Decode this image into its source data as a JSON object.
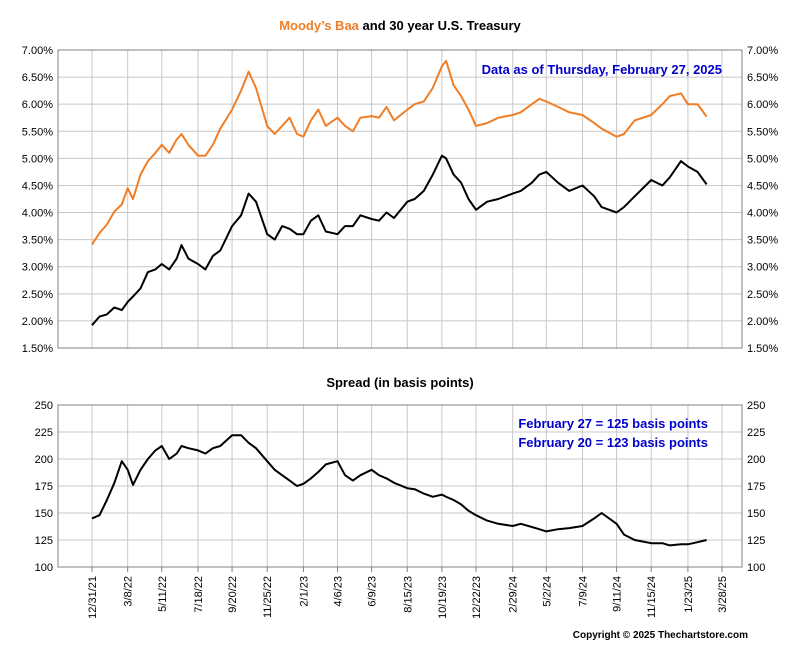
{
  "chart_data": [
    {
      "type": "line",
      "title_parts": [
        {
          "text": "Moody’s Baa",
          "color": "#f07e26"
        },
        {
          "text": " and 30 year U.S. Treasury",
          "color": "#000000"
        }
      ],
      "annotation": "Data as of Thursday, February 27, 2025",
      "annotation_color": "#0000cc",
      "ylim": [
        1.5,
        7.0
      ],
      "yticks": [
        "1.50%",
        "2.00%",
        "2.50%",
        "3.00%",
        "3.50%",
        "4.00%",
        "4.50%",
        "5.00%",
        "5.50%",
        "6.00%",
        "6.50%",
        "7.00%"
      ],
      "grid": true,
      "series": [
        {
          "name": "Moody’s Baa",
          "color": "#f07e26",
          "points": [
            [
              "12/31/21",
              3.41
            ],
            [
              "1/14/22",
              3.62
            ],
            [
              "1/28/22",
              3.78
            ],
            [
              "2/11/22",
              4.02
            ],
            [
              "2/25/22",
              4.15
            ],
            [
              "3/8/22",
              4.45
            ],
            [
              "3/18/22",
              4.25
            ],
            [
              "4/1/22",
              4.7
            ],
            [
              "4/15/22",
              4.95
            ],
            [
              "4/29/22",
              5.1
            ],
            [
              "5/11/22",
              5.25
            ],
            [
              "5/25/22",
              5.1
            ],
            [
              "6/8/22",
              5.35
            ],
            [
              "6/17/22",
              5.45
            ],
            [
              "6/30/22",
              5.25
            ],
            [
              "7/18/22",
              5.05
            ],
            [
              "8/1/22",
              5.05
            ],
            [
              "8/15/22",
              5.25
            ],
            [
              "8/29/22",
              5.55
            ],
            [
              "9/20/22",
              5.9
            ],
            [
              "10/7/22",
              6.25
            ],
            [
              "10/21/22",
              6.6
            ],
            [
              "11/4/22",
              6.3
            ],
            [
              "11/25/22",
              5.6
            ],
            [
              "12/9/22",
              5.45
            ],
            [
              "12/23/22",
              5.6
            ],
            [
              "1/6/23",
              5.75
            ],
            [
              "1/20/23",
              5.45
            ],
            [
              "2/1/23",
              5.4
            ],
            [
              "2/15/23",
              5.7
            ],
            [
              "3/1/23",
              5.9
            ],
            [
              "3/15/23",
              5.6
            ],
            [
              "4/6/23",
              5.75
            ],
            [
              "4/20/23",
              5.6
            ],
            [
              "5/5/23",
              5.5
            ],
            [
              "5/19/23",
              5.75
            ],
            [
              "6/9/23",
              5.78
            ],
            [
              "6/23/23",
              5.75
            ],
            [
              "7/7/23",
              5.95
            ],
            [
              "7/21/23",
              5.7
            ],
            [
              "8/15/23",
              5.9
            ],
            [
              "8/29/23",
              6.0
            ],
            [
              "9/15/23",
              6.05
            ],
            [
              "10/2/23",
              6.3
            ],
            [
              "10/19/23",
              6.7
            ],
            [
              "10/27/23",
              6.8
            ],
            [
              "11/10/23",
              6.35
            ],
            [
              "11/24/23",
              6.15
            ],
            [
              "12/8/23",
              5.9
            ],
            [
              "12/22/23",
              5.6
            ],
            [
              "1/12/24",
              5.65
            ],
            [
              "2/2/24",
              5.75
            ],
            [
              "2/29/24",
              5.8
            ],
            [
              "3/15/24",
              5.85
            ],
            [
              "4/5/24",
              6.0
            ],
            [
              "4/19/24",
              6.1
            ],
            [
              "5/2/24",
              6.05
            ],
            [
              "5/24/24",
              5.95
            ],
            [
              "6/14/24",
              5.85
            ],
            [
              "7/9/24",
              5.8
            ],
            [
              "7/31/24",
              5.65
            ],
            [
              "8/14/24",
              5.55
            ],
            [
              "9/11/24",
              5.4
            ],
            [
              "9/25/24",
              5.45
            ],
            [
              "10/15/24",
              5.7
            ],
            [
              "11/15/24",
              5.8
            ],
            [
              "12/6/24",
              6.0
            ],
            [
              "12/20/24",
              6.15
            ],
            [
              "1/10/25",
              6.2
            ],
            [
              "1/23/25",
              6.0
            ],
            [
              "2/10/25",
              6.0
            ],
            [
              "2/27/25",
              5.77
            ]
          ]
        },
        {
          "name": "30 year U.S. Treasury",
          "color": "#000000",
          "points": [
            [
              "12/31/21",
              1.92
            ],
            [
              "1/14/22",
              2.08
            ],
            [
              "1/28/22",
              2.12
            ],
            [
              "2/11/22",
              2.25
            ],
            [
              "2/25/22",
              2.2
            ],
            [
              "3/8/22",
              2.35
            ],
            [
              "3/18/22",
              2.45
            ],
            [
              "4/1/22",
              2.6
            ],
            [
              "4/15/22",
              2.9
            ],
            [
              "4/29/22",
              2.95
            ],
            [
              "5/11/22",
              3.05
            ],
            [
              "5/25/22",
              2.95
            ],
            [
              "6/8/22",
              3.15
            ],
            [
              "6/17/22",
              3.4
            ],
            [
              "6/30/22",
              3.15
            ],
            [
              "7/18/22",
              3.05
            ],
            [
              "8/1/22",
              2.95
            ],
            [
              "8/15/22",
              3.2
            ],
            [
              "8/29/22",
              3.3
            ],
            [
              "9/20/22",
              3.75
            ],
            [
              "10/7/22",
              3.95
            ],
            [
              "10/21/22",
              4.35
            ],
            [
              "11/4/22",
              4.2
            ],
            [
              "11/25/22",
              3.6
            ],
            [
              "12/9/22",
              3.5
            ],
            [
              "12/23/22",
              3.75
            ],
            [
              "1/6/23",
              3.7
            ],
            [
              "1/20/23",
              3.6
            ],
            [
              "2/1/23",
              3.6
            ],
            [
              "2/15/23",
              3.85
            ],
            [
              "3/1/23",
              3.95
            ],
            [
              "3/15/23",
              3.65
            ],
            [
              "4/6/23",
              3.6
            ],
            [
              "4/20/23",
              3.75
            ],
            [
              "5/5/23",
              3.75
            ],
            [
              "5/19/23",
              3.95
            ],
            [
              "6/9/23",
              3.88
            ],
            [
              "6/23/23",
              3.85
            ],
            [
              "7/7/23",
              4.0
            ],
            [
              "7/21/23",
              3.9
            ],
            [
              "8/15/23",
              4.2
            ],
            [
              "8/29/23",
              4.25
            ],
            [
              "9/15/23",
              4.4
            ],
            [
              "10/2/23",
              4.7
            ],
            [
              "10/19/23",
              5.05
            ],
            [
              "10/27/23",
              5.0
            ],
            [
              "11/10/23",
              4.7
            ],
            [
              "11/24/23",
              4.55
            ],
            [
              "12/8/23",
              4.25
            ],
            [
              "12/22/23",
              4.05
            ],
            [
              "1/12/24",
              4.2
            ],
            [
              "2/2/24",
              4.25
            ],
            [
              "2/29/24",
              4.35
            ],
            [
              "3/15/24",
              4.4
            ],
            [
              "4/5/24",
              4.55
            ],
            [
              "4/19/24",
              4.7
            ],
            [
              "5/2/24",
              4.75
            ],
            [
              "5/24/24",
              4.55
            ],
            [
              "6/14/24",
              4.4
            ],
            [
              "7/9/24",
              4.5
            ],
            [
              "7/31/24",
              4.3
            ],
            [
              "8/14/24",
              4.1
            ],
            [
              "9/11/24",
              4.0
            ],
            [
              "9/25/24",
              4.1
            ],
            [
              "10/15/24",
              4.3
            ],
            [
              "11/15/24",
              4.6
            ],
            [
              "12/6/24",
              4.5
            ],
            [
              "12/20/24",
              4.65
            ],
            [
              "1/10/25",
              4.95
            ],
            [
              "1/23/25",
              4.85
            ],
            [
              "2/10/25",
              4.75
            ],
            [
              "2/27/25",
              4.52
            ]
          ]
        }
      ]
    },
    {
      "type": "line",
      "title": "Spread (in basis points)",
      "annotations": [
        "February 27 = 125 basis points",
        "February 20 = 123 basis points"
      ],
      "annotation_color": "#0000cc",
      "ylim": [
        100,
        250
      ],
      "yticks": [
        "100",
        "125",
        "150",
        "175",
        "200",
        "225",
        "250"
      ],
      "grid": true,
      "xticks": [
        "12/31/21",
        "3/8/22",
        "5/11/22",
        "7/18/22",
        "9/20/22",
        "11/25/22",
        "2/1/23",
        "4/6/23",
        "6/9/23",
        "8/15/23",
        "10/19/23",
        "12/22/23",
        "2/29/24",
        "5/2/24",
        "7/9/24",
        "9/11/24",
        "11/15/24",
        "1/23/25",
        "3/28/25"
      ],
      "series": [
        {
          "name": "Spread",
          "color": "#000000",
          "points": [
            [
              "12/31/21",
              145
            ],
            [
              "1/14/22",
              148
            ],
            [
              "1/28/22",
              162
            ],
            [
              "2/11/22",
              178
            ],
            [
              "2/25/22",
              198
            ],
            [
              "3/8/22",
              190
            ],
            [
              "3/18/22",
              176
            ],
            [
              "4/1/22",
              190
            ],
            [
              "4/15/22",
              200
            ],
            [
              "4/29/22",
              208
            ],
            [
              "5/11/22",
              212
            ],
            [
              "5/25/22",
              200
            ],
            [
              "6/8/22",
              205
            ],
            [
              "6/17/22",
              212
            ],
            [
              "6/30/22",
              210
            ],
            [
              "7/18/22",
              208
            ],
            [
              "8/1/22",
              205
            ],
            [
              "8/15/22",
              210
            ],
            [
              "8/29/22",
              212
            ],
            [
              "9/20/22",
              222
            ],
            [
              "10/7/22",
              222
            ],
            [
              "10/21/22",
              215
            ],
            [
              "11/4/22",
              210
            ],
            [
              "11/25/22",
              198
            ],
            [
              "12/9/22",
              190
            ],
            [
              "12/23/22",
              185
            ],
            [
              "1/6/23",
              180
            ],
            [
              "1/20/23",
              175
            ],
            [
              "2/1/23",
              177
            ],
            [
              "2/15/23",
              182
            ],
            [
              "3/1/23",
              188
            ],
            [
              "3/15/23",
              195
            ],
            [
              "4/6/23",
              198
            ],
            [
              "4/20/23",
              185
            ],
            [
              "5/5/23",
              180
            ],
            [
              "5/19/23",
              185
            ],
            [
              "6/9/23",
              190
            ],
            [
              "6/23/23",
              185
            ],
            [
              "7/7/23",
              182
            ],
            [
              "7/21/23",
              178
            ],
            [
              "8/15/23",
              173
            ],
            [
              "8/29/23",
              172
            ],
            [
              "9/15/23",
              168
            ],
            [
              "10/2/23",
              165
            ],
            [
              "10/19/23",
              167
            ],
            [
              "10/27/23",
              165
            ],
            [
              "11/10/23",
              162
            ],
            [
              "11/24/23",
              158
            ],
            [
              "12/8/23",
              152
            ],
            [
              "12/22/23",
              148
            ],
            [
              "1/12/24",
              143
            ],
            [
              "2/2/24",
              140
            ],
            [
              "2/29/24",
              138
            ],
            [
              "3/15/24",
              140
            ],
            [
              "4/5/24",
              137
            ],
            [
              "4/19/24",
              135
            ],
            [
              "5/2/24",
              133
            ],
            [
              "5/24/24",
              135
            ],
            [
              "6/14/24",
              136
            ],
            [
              "7/9/24",
              138
            ],
            [
              "7/31/24",
              145
            ],
            [
              "8/14/24",
              150
            ],
            [
              "9/11/24",
              140
            ],
            [
              "9/25/24",
              130
            ],
            [
              "10/15/24",
              125
            ],
            [
              "11/15/24",
              122
            ],
            [
              "12/6/24",
              122
            ],
            [
              "12/20/24",
              120
            ],
            [
              "1/10/25",
              121
            ],
            [
              "1/23/25",
              121
            ],
            [
              "2/10/25",
              123
            ],
            [
              "2/27/25",
              125
            ]
          ]
        }
      ]
    }
  ],
  "copyright": "Copyright © 2025 Thechartstore.com"
}
